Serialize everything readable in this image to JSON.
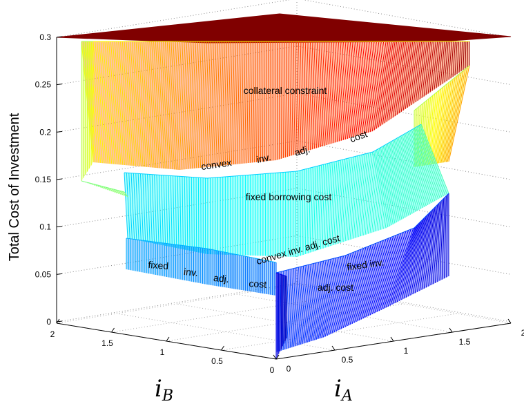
{
  "chart_data": {
    "type": "surface3d",
    "zlabel": "Total Cost of Investment",
    "xlabel": {
      "symbol": "i",
      "subscript": "A"
    },
    "ylabel": {
      "symbol": "i",
      "subscript": "B"
    },
    "xlim": [
      0,
      2
    ],
    "ylim": [
      0,
      2
    ],
    "zlim": [
      0,
      0.3
    ],
    "x_ticks": [
      "0",
      "0.5",
      "1",
      "1.5",
      "2"
    ],
    "y_ticks": [
      "0",
      "0.5",
      "1",
      "1.5",
      "2"
    ],
    "z_ticks": [
      "0",
      "0.05",
      "0.1",
      "0.15",
      "0.2",
      "0.25",
      "0.3"
    ],
    "grid": true,
    "colormap": "jet",
    "plateau_cap": 0.3,
    "regions": [
      {
        "name": "collateral constraint",
        "z_range": [
          0.2,
          0.3
        ]
      },
      {
        "name": "convex inv. adj. cost",
        "z_range": [
          0.15,
          0.2
        ]
      },
      {
        "name": "fixed borrowing cost",
        "z_range": [
          0.1,
          0.15
        ]
      },
      {
        "name": "convex inv. adj. cost",
        "z_range": [
          0.05,
          0.1
        ]
      },
      {
        "name": "fixed inv. adj. cost",
        "z_range": [
          0,
          0.05
        ]
      }
    ],
    "annotations": [
      {
        "id": "collateral",
        "text": "collateral constraint"
      },
      {
        "id": "convex_upper",
        "words": [
          "convex",
          "inv.",
          "adj.",
          "cost"
        ]
      },
      {
        "id": "fixed_borrowing",
        "text": "fixed borrowing cost"
      },
      {
        "id": "convex_lower",
        "text": "convex  inv. adj. cost"
      },
      {
        "id": "fixed_inv_left",
        "words": [
          "fixed",
          "inv.",
          "adj.",
          "cost"
        ]
      },
      {
        "id": "fixed_inv_right_1",
        "text": "fixed inv."
      },
      {
        "id": "fixed_inv_right_2",
        "text": "adj. cost"
      }
    ]
  }
}
